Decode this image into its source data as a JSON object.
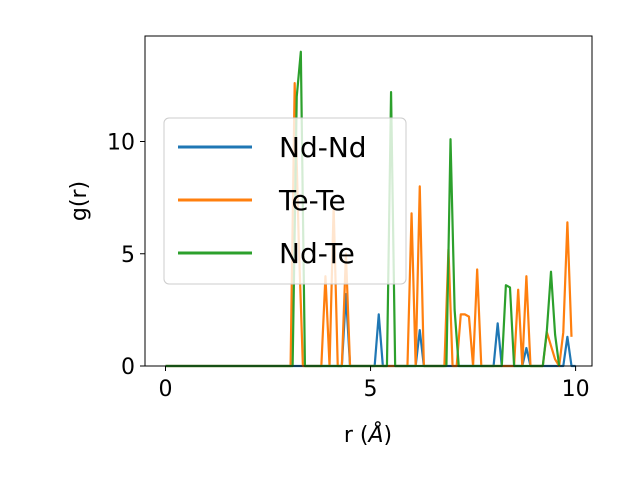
{
  "chart_data": {
    "type": "line",
    "xlabel_main": "r (",
    "xlabel_unit": "Å",
    "xlabel_close": ")",
    "ylabel": "g(r)",
    "xlim": [
      -0.5,
      10.4
    ],
    "ylim": [
      0,
      14.7
    ],
    "xticks": [
      0,
      5,
      10
    ],
    "xtick_labels": [
      "0",
      "5",
      "10"
    ],
    "yticks": [
      0,
      5,
      10
    ],
    "ytick_labels": [
      "0",
      "5",
      "10"
    ],
    "grid": false,
    "legend_position": "center-left",
    "series": [
      {
        "name": "Nd-Nd",
        "color": "#1f77b4",
        "x": [
          0,
          4.3,
          4.4,
          4.5,
          5.1,
          5.2,
          5.3,
          6.1,
          6.2,
          6.3,
          8.0,
          8.1,
          8.2,
          8.7,
          8.8,
          8.9,
          9.7,
          9.8,
          9.9,
          10.0
        ],
        "y": [
          0,
          0,
          3.2,
          0,
          0,
          2.3,
          0,
          0,
          1.6,
          0,
          0,
          1.9,
          0,
          0,
          0.8,
          0,
          0,
          1.3,
          0,
          0
        ]
      },
      {
        "name": "Te-Te",
        "color": "#ff7f0e",
        "x": [
          0,
          3.05,
          3.15,
          3.25,
          3.35,
          3.8,
          3.9,
          4.0,
          4.1,
          4.2,
          4.3,
          4.4,
          4.5,
          5.8,
          5.9,
          6.0,
          6.1,
          6.2,
          6.3,
          6.7,
          6.8,
          6.9,
          7.0,
          7.1,
          7.2,
          7.3,
          7.4,
          7.5,
          7.6,
          7.7,
          8.5,
          8.6,
          8.7,
          8.8,
          8.9,
          9.2,
          9.3,
          9.5,
          9.6,
          9.7,
          9.8,
          9.9
        ],
        "y": [
          0,
          0,
          12.6,
          5.5,
          0,
          0,
          4.0,
          0,
          7.1,
          0,
          0,
          5.0,
          0,
          0,
          0,
          6.8,
          0,
          8.0,
          0,
          0,
          0,
          5.2,
          0,
          0,
          2.3,
          2.3,
          2.2,
          0,
          4.3,
          0,
          0,
          3.4,
          0,
          4.0,
          0,
          0,
          1.5,
          0.3,
          0,
          1.5,
          6.4,
          1.3
        ]
      },
      {
        "name": "Nd-Te",
        "color": "#2ca02c",
        "x": [
          0,
          3.1,
          3.2,
          3.3,
          3.4,
          5.4,
          5.5,
          5.6,
          6.85,
          6.95,
          7.05,
          7.15,
          7.25,
          8.2,
          8.3,
          8.4,
          8.5,
          9.2,
          9.3,
          9.4,
          9.5,
          9.6
        ],
        "y": [
          0,
          0,
          12.0,
          14.0,
          0,
          0,
          12.2,
          0,
          0,
          10.1,
          2.5,
          0,
          0,
          0,
          3.6,
          3.5,
          0,
          0,
          1.6,
          4.2,
          1.4,
          0
        ]
      }
    ]
  }
}
